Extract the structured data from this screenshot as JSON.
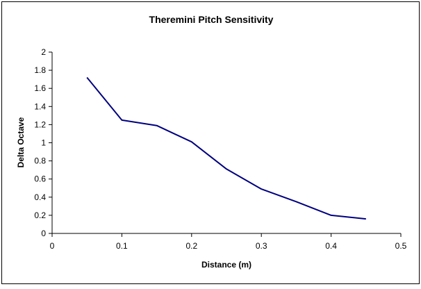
{
  "chart_data": {
    "type": "line",
    "title": "Theremini Pitch Sensitivity",
    "xlabel": "Distance (m)",
    "ylabel": "Delta Octave",
    "xlim": [
      0,
      0.5
    ],
    "ylim": [
      0,
      2
    ],
    "x_ticks": [
      "0",
      "0.1",
      "0.2",
      "0.3",
      "0.4",
      "0.5"
    ],
    "y_ticks": [
      "0",
      "0.2",
      "0.4",
      "0.6",
      "0.8",
      "1",
      "1.2",
      "1.4",
      "1.6",
      "1.8",
      "2"
    ],
    "grid": false,
    "legend": "none",
    "series": [
      {
        "color": "#000080",
        "x": [
          0.05,
          0.1,
          0.15,
          0.2,
          0.25,
          0.3,
          0.35,
          0.4,
          0.45
        ],
        "y": [
          1.72,
          1.25,
          1.19,
          1.01,
          0.71,
          0.49,
          0.35,
          0.2,
          0.16
        ]
      }
    ]
  }
}
